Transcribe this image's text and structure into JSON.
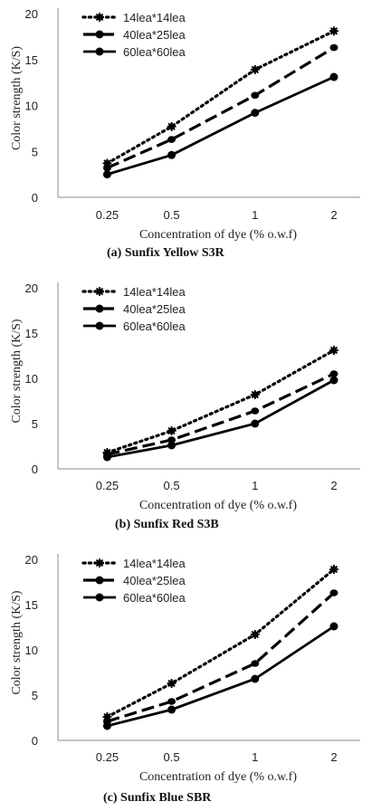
{
  "chart_data": [
    {
      "type": "line",
      "categories": [
        "0.25",
        "0.5",
        "1",
        "2"
      ],
      "series": [
        {
          "name": "14lea*14lea",
          "style": "dotted",
          "values": [
            3.7,
            7.7,
            13.9,
            18.1
          ]
        },
        {
          "name": "40lea*25lea",
          "style": "dashed",
          "values": [
            3.2,
            6.3,
            11.1,
            16.3
          ]
        },
        {
          "name": "60lea*60lea",
          "style": "solid",
          "values": [
            2.5,
            4.6,
            9.2,
            13.1
          ]
        }
      ],
      "xlabel": "Concentration of dye (% o.w.f)",
      "ylabel": "Color strength (K/S)",
      "ylim": [
        0,
        20
      ],
      "yticks": [
        "0",
        "5",
        "10",
        "15",
        "20"
      ],
      "caption_label": "(a)",
      "caption_text": "Sunfix Yellow S3R",
      "legend_position": "top-left",
      "grid": false
    },
    {
      "type": "line",
      "categories": [
        "0.25",
        "0.5",
        "1",
        "2"
      ],
      "series": [
        {
          "name": "14lea*14lea",
          "style": "dotted",
          "values": [
            1.8,
            4.2,
            8.2,
            13.1
          ]
        },
        {
          "name": "40lea*25lea",
          "style": "dashed",
          "values": [
            1.6,
            3.2,
            6.4,
            10.5
          ]
        },
        {
          "name": "60lea*60lea",
          "style": "solid",
          "values": [
            1.3,
            2.6,
            5.0,
            9.8
          ]
        }
      ],
      "xlabel": "Concentration of dye (% o.w.f)",
      "ylabel": "Color strength (K/S)",
      "ylim": [
        0,
        20
      ],
      "yticks": [
        "0",
        "5",
        "10",
        "15",
        "20"
      ],
      "caption_label": "(b)",
      "caption_text": "Sunfix Red S3B",
      "legend_position": "top-left",
      "grid": false
    },
    {
      "type": "line",
      "categories": [
        "0.25",
        "0.5",
        "1",
        "2"
      ],
      "series": [
        {
          "name": "14lea*14lea",
          "style": "dotted",
          "values": [
            2.6,
            6.3,
            11.7,
            18.9
          ]
        },
        {
          "name": "40lea*25lea",
          "style": "dashed",
          "values": [
            2.1,
            4.3,
            8.5,
            16.3
          ]
        },
        {
          "name": "60lea*60lea",
          "style": "solid",
          "values": [
            1.6,
            3.4,
            6.8,
            12.6
          ]
        }
      ],
      "xlabel": "Concentration of dye (% o.w.f)",
      "ylabel": "Color strength (K/S)",
      "ylim": [
        0,
        20
      ],
      "yticks": [
        "0",
        "5",
        "10",
        "15",
        "20"
      ],
      "caption_label": "(c)",
      "caption_text": "Sunfix Blue SBR",
      "legend_position": "top-left",
      "grid": false
    }
  ],
  "colors": {
    "line": "#000000",
    "axis": "#888888",
    "text": "#222222"
  }
}
